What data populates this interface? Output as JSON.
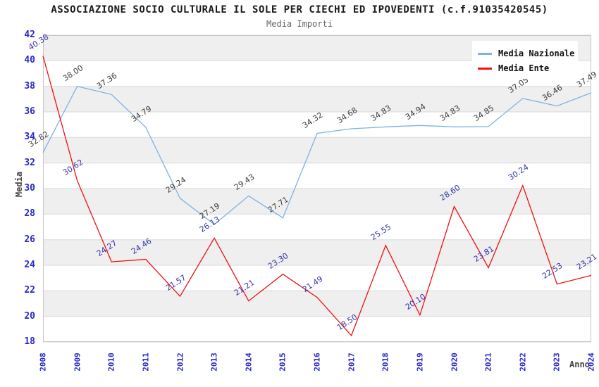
{
  "chart": {
    "title": "ASSOCIAZIONE SOCIO CULTURALE IL SOLE PER CIECHI ED IPOVEDENTI (c.f.91035420545)",
    "subtitle": "Media Importi",
    "ylabel": "Media",
    "xlabel": "Anno"
  },
  "legend": {
    "items": [
      {
        "label": "Media Nazionale",
        "color": "#7EB2E4"
      },
      {
        "label": "Media Ente",
        "color": "#EE1111"
      }
    ]
  },
  "chart_data": {
    "type": "line",
    "title": "ASSOCIAZIONE SOCIO CULTURALE IL SOLE PER CIECHI ED IPOVEDENTI (c.f.91035420545)",
    "subtitle": "Media Importi",
    "xlabel": "Anno",
    "ylabel": "Media",
    "x": [
      2008,
      2009,
      2010,
      2011,
      2012,
      2013,
      2014,
      2015,
      2016,
      2017,
      2018,
      2019,
      2020,
      2021,
      2022,
      2023,
      2024
    ],
    "series": [
      {
        "name": "Media Nazionale",
        "color": "#7EB2E4",
        "label_color": "#3C3C3C",
        "values": [
          32.82,
          38.0,
          37.36,
          34.79,
          29.24,
          27.19,
          29.43,
          27.71,
          34.32,
          34.68,
          34.83,
          34.94,
          34.83,
          34.85,
          37.05,
          36.46,
          37.49
        ]
      },
      {
        "name": "Media Ente",
        "color": "#EE1111",
        "label_color": "#3434AA",
        "values": [
          40.38,
          30.62,
          24.27,
          24.46,
          21.57,
          26.13,
          21.21,
          23.3,
          21.49,
          18.5,
          25.55,
          20.1,
          28.6,
          23.81,
          30.24,
          22.53,
          23.21
        ]
      }
    ],
    "ylim": [
      18,
      42
    ],
    "ytick_step": 2,
    "value_label_decimals": 2,
    "legend_position": "top-right",
    "grid": "horizontal",
    "band_colors": [
      "#EFEFEF",
      "#FFFFFF"
    ],
    "gridline_color": "#DADADA",
    "plot_border_color": "#C6C6C6",
    "tick_label_color": "#2828CC"
  }
}
